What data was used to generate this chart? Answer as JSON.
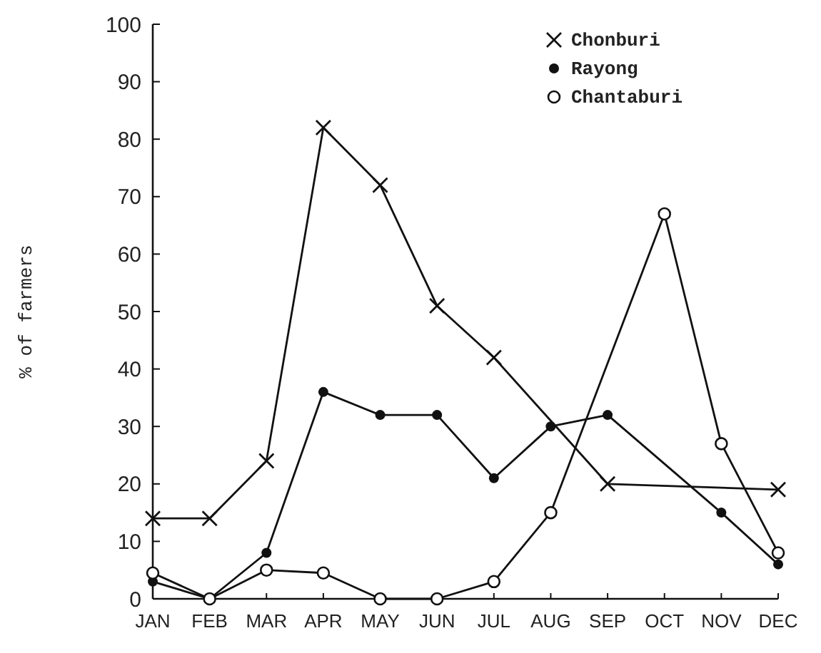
{
  "chart_data": {
    "type": "line",
    "ylabel": "% of farmers",
    "categories": [
      "JAN",
      "FEB",
      "MAR",
      "APR",
      "MAY",
      "JUN",
      "JUL",
      "AUG",
      "SEP",
      "OCT",
      "NOV",
      "DEC"
    ],
    "series": [
      {
        "name": "Chonburi",
        "color": "#111111",
        "marker": "cross",
        "values": [
          14,
          14,
          24,
          82,
          72,
          51,
          42,
          null,
          20,
          null,
          null,
          19
        ]
      },
      {
        "name": "Rayong",
        "color": "#111111",
        "marker": "circle",
        "values": [
          3,
          0,
          8,
          36,
          32,
          32,
          21,
          30,
          32,
          null,
          15,
          6
        ]
      },
      {
        "name": "Chantaburi",
        "color": "#111111",
        "marker": "open-circle",
        "values": [
          4.5,
          0,
          5,
          4.5,
          0,
          0,
          3,
          15,
          null,
          67,
          27,
          8
        ]
      }
    ],
    "ylim": [
      0,
      100
    ],
    "yticks": [
      0,
      10,
      20,
      30,
      40,
      50,
      60,
      70,
      80,
      90,
      100
    ],
    "grid": false,
    "legend": "top right",
    "line_style": "solid"
  }
}
